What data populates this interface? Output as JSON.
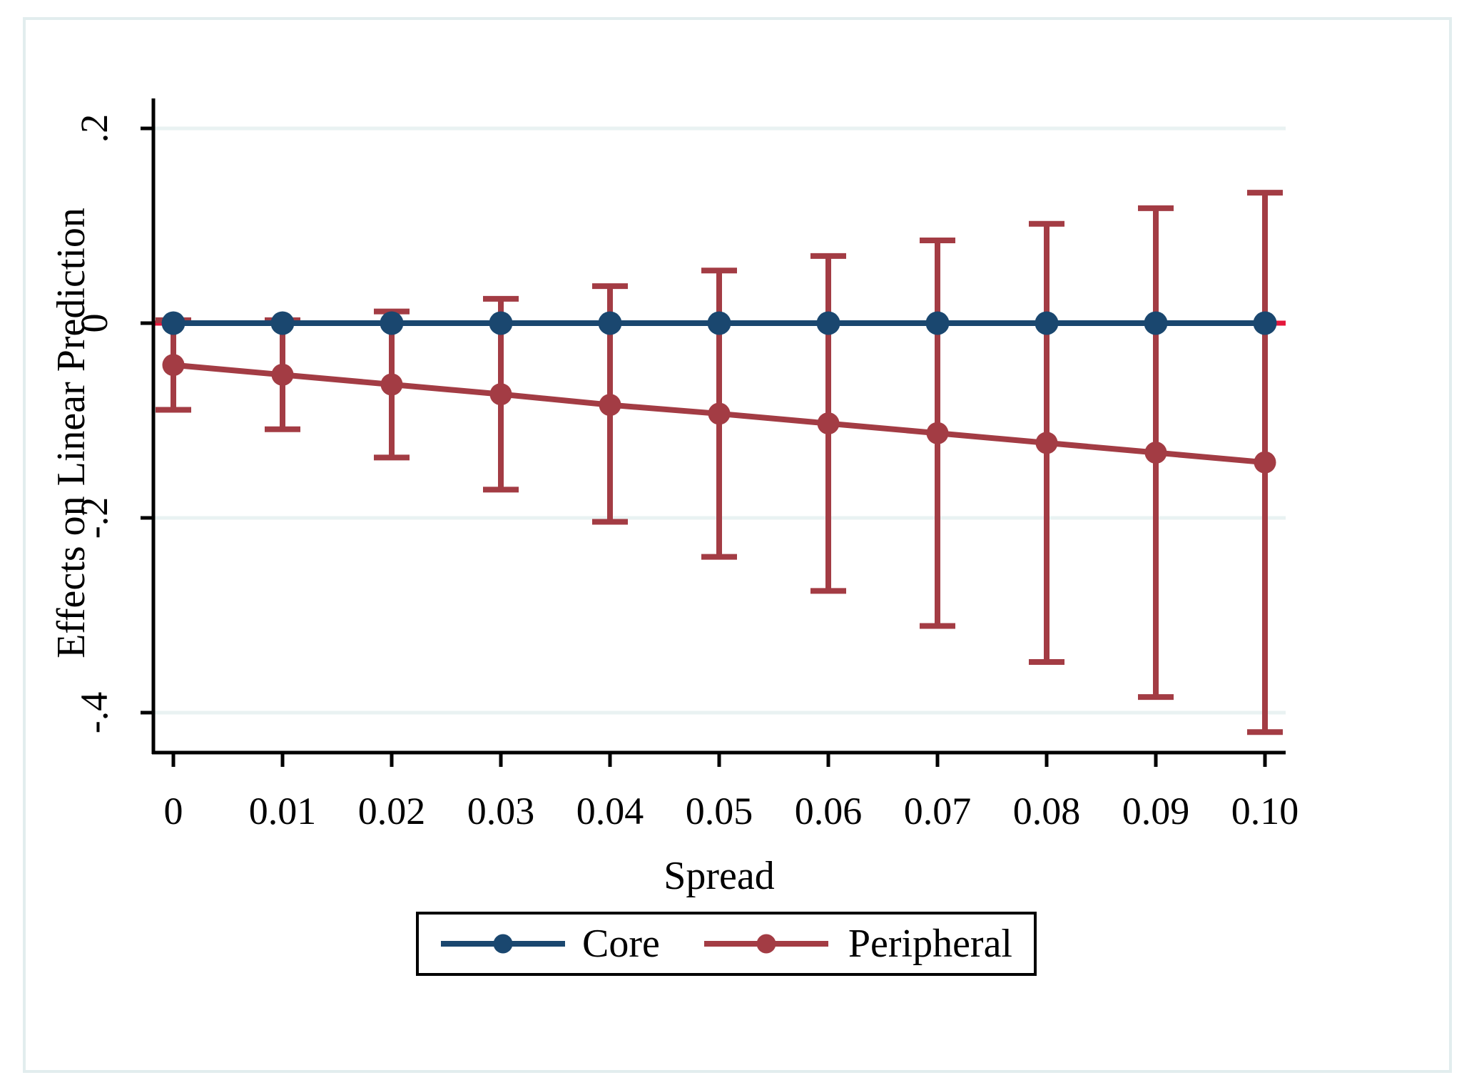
{
  "figure": {
    "background_color": "#ffffff",
    "border_color": "#e2edee"
  },
  "chart_data": {
    "type": "line",
    "title": "",
    "xlabel": "Spread",
    "ylabel": "Effects on Linear Prediction",
    "x": [
      0,
      0.01,
      0.02,
      0.03,
      0.04,
      0.05,
      0.06,
      0.07,
      0.08,
      0.09,
      0.1
    ],
    "x_tick_labels": [
      "0",
      "0.01",
      "0.02",
      "0.03",
      "0.04",
      "0.05",
      "0.06",
      "0.07",
      "0.08",
      "0.09",
      "0.10"
    ],
    "y_ticks": [
      0.2,
      0,
      -0.2,
      -0.4
    ],
    "y_tick_labels": [
      ".2",
      "0",
      "-.2",
      "-.4"
    ],
    "ylim": [
      -0.441,
      0.229
    ],
    "grid": "horizontal",
    "grid_color": "#e9f2f2",
    "axis_color": "#000000",
    "refline_y": 0,
    "refline_color": "#e4173b",
    "legend_position": "bottom-center-boxed",
    "series": [
      {
        "name": "Core",
        "color": "#1a476f",
        "values": [
          0,
          0,
          0,
          0,
          0,
          0,
          0,
          0,
          0,
          0,
          0
        ],
        "ci_low": null,
        "ci_high": null
      },
      {
        "name": "Peripheral",
        "color": "#a33c44",
        "values": [
          -0.043,
          -0.053,
          -0.063,
          -0.073,
          -0.084,
          -0.093,
          -0.103,
          -0.113,
          -0.123,
          -0.133,
          -0.143
        ],
        "ci_low": [
          -0.089,
          -0.109,
          -0.138,
          -0.171,
          -0.204,
          -0.24,
          -0.275,
          -0.311,
          -0.348,
          -0.384,
          -0.42
        ],
        "ci_high": [
          0.003,
          0.003,
          0.012,
          0.025,
          0.038,
          0.054,
          0.069,
          0.085,
          0.102,
          0.118,
          0.134
        ]
      }
    ]
  },
  "legend": {
    "items": [
      {
        "label": "Core",
        "color": "#1a476f"
      },
      {
        "label": "Peripheral",
        "color": "#a33c44"
      }
    ]
  }
}
